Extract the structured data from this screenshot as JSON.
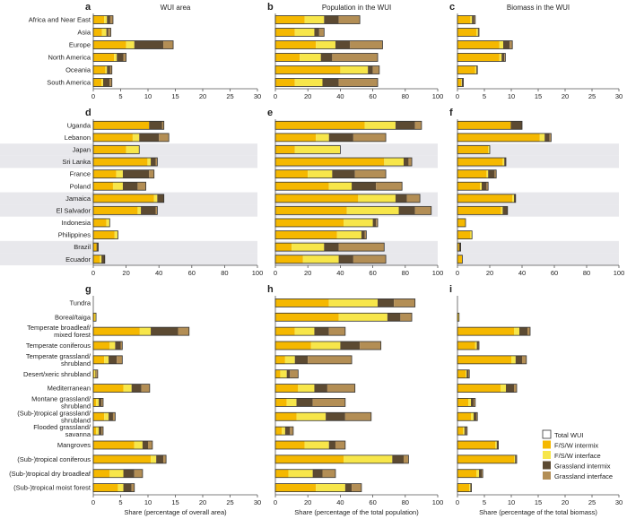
{
  "colors": {
    "fsw_intermix": "#F5B800",
    "fsw_interface": "#F7E64A",
    "grass_intermix": "#5C4A32",
    "grass_interface": "#B38E55",
    "outline": "#333333",
    "shade": "#E8E8EC"
  },
  "legend": [
    {
      "label": "Total WUI",
      "kind": "total"
    },
    {
      "label": "F/S/W intermix",
      "kind": "fsw_intermix"
    },
    {
      "label": "F/S/W interface",
      "kind": "fsw_interface"
    },
    {
      "label": "Grassland intermix",
      "kind": "grass_intermix"
    },
    {
      "label": "Grassland interface",
      "kind": "grass_interface"
    }
  ],
  "chart_data": [
    {
      "id": "a",
      "type": "bar",
      "orientation": "horizontal",
      "stacked": true,
      "title": "WUI area",
      "xlabel": "",
      "xlim": [
        0,
        30
      ],
      "xticks": [
        0,
        5,
        10,
        15,
        20,
        25,
        30
      ],
      "categories": [
        "Africa and Near East",
        "Asia",
        "Europe",
        "North America",
        "Oceania",
        "South America"
      ],
      "series": [
        {
          "name": "F/S/W intermix",
          "values": [
            2.0,
            1.6,
            6.0,
            3.8,
            2.2,
            1.5
          ]
        },
        {
          "name": "F/S/W interface",
          "values": [
            0.5,
            0.8,
            1.5,
            0.5,
            0.3,
            0.3
          ]
        },
        {
          "name": "Grassland intermix",
          "values": [
            0.6,
            0.3,
            5.3,
            1.2,
            0.6,
            1.2
          ]
        },
        {
          "name": "Grassland interface",
          "values": [
            0.5,
            0.5,
            1.8,
            0.5,
            0.3,
            0.4
          ]
        }
      ]
    },
    {
      "id": "b",
      "type": "bar",
      "orientation": "horizontal",
      "stacked": true,
      "title": "Population in the WUI",
      "xlabel": "",
      "xlim": [
        0,
        100
      ],
      "xticks": [
        0,
        20,
        40,
        60,
        80,
        100
      ],
      "categories": [
        "Africa and Near East",
        "Asia",
        "Europe",
        "North America",
        "Oceania",
        "South America"
      ],
      "series": [
        {
          "name": "F/S/W intermix",
          "values": [
            18,
            12,
            25,
            15,
            40,
            12
          ]
        },
        {
          "name": "F/S/W interface",
          "values": [
            12,
            12,
            12,
            13,
            17,
            17
          ]
        },
        {
          "name": "Grassland intermix",
          "values": [
            9,
            3,
            9,
            7,
            3,
            10
          ]
        },
        {
          "name": "Grassland interface",
          "values": [
            13,
            3,
            20,
            28,
            4,
            24
          ]
        }
      ]
    },
    {
      "id": "c",
      "type": "bar",
      "orientation": "horizontal",
      "stacked": true,
      "title": "Biomass in the WUI",
      "xlabel": "",
      "xlim": [
        0,
        30
      ],
      "xticks": [
        0,
        5,
        10,
        15,
        20,
        25,
        30
      ],
      "categories": [
        "Africa and Near East",
        "Asia",
        "Europe",
        "North America",
        "Oceania",
        "South America"
      ],
      "series": [
        {
          "name": "F/S/W intermix",
          "values": [
            2.4,
            3.5,
            7.8,
            7.8,
            3.3,
            0.7
          ]
        },
        {
          "name": "F/S/W interface",
          "values": [
            0.3,
            0.3,
            0.7,
            0.4,
            0.2,
            0.1
          ]
        },
        {
          "name": "Grassland intermix",
          "values": [
            0.4,
            0.1,
            1.2,
            0.5,
            0.1,
            0.2
          ]
        },
        {
          "name": "Grassland interface",
          "values": [
            0.2,
            0.1,
            0.5,
            0.2,
            0.1,
            0.1
          ]
        }
      ]
    },
    {
      "id": "d",
      "type": "bar",
      "orientation": "horizontal",
      "stacked": true,
      "title": "",
      "xlabel": "",
      "xlim": [
        0,
        100
      ],
      "xticks": [
        0,
        20,
        40,
        60,
        80,
        100
      ],
      "categories": [
        "Uganda",
        "Lebanon",
        "Japan",
        "Sri Lanka",
        "France",
        "Poland",
        "Jamaica",
        "El Salvador",
        "Indonesia",
        "Philippines",
        "Brazil",
        "Ecuador"
      ],
      "shaded_rows": [
        "Japan",
        "Sri Lanka",
        "Jamaica",
        "El Salvador",
        "Brazil",
        "Ecuador"
      ],
      "series": [
        {
          "name": "F/S/W intermix",
          "values": [
            34,
            24,
            20,
            33,
            14,
            12,
            37,
            27,
            8,
            13,
            2,
            4
          ]
        },
        {
          "name": "F/S/W interface",
          "values": [
            0,
            4,
            8,
            2,
            4,
            6,
            2,
            2,
            2,
            2,
            0,
            1
          ]
        },
        {
          "name": "Grassland intermix",
          "values": [
            8,
            12,
            0,
            3,
            16,
            9,
            4,
            9,
            0,
            0,
            1,
            2
          ]
        },
        {
          "name": "Grassland interface",
          "values": [
            1,
            6,
            0,
            1,
            3,
            5,
            0,
            1,
            0,
            0,
            0,
            0
          ]
        }
      ]
    },
    {
      "id": "e",
      "type": "bar",
      "orientation": "horizontal",
      "stacked": true,
      "title": "",
      "xlabel": "",
      "xlim": [
        0,
        100
      ],
      "xticks": [
        0,
        20,
        40,
        60,
        80,
        100
      ],
      "categories": [
        "Uganda",
        "Lebanon",
        "Japan",
        "Sri Lanka",
        "France",
        "Poland",
        "Jamaica",
        "El Salvador",
        "Indonesia",
        "Philippines",
        "Brazil",
        "Ecuador"
      ],
      "shaded_rows": [
        "Japan",
        "Sri Lanka",
        "Jamaica",
        "El Salvador",
        "Brazil",
        "Ecuador"
      ],
      "series": [
        {
          "name": "F/S/W intermix",
          "values": [
            55,
            25,
            12,
            67,
            20,
            33,
            51,
            44,
            42,
            38,
            10,
            17
          ]
        },
        {
          "name": "F/S/W interface",
          "values": [
            19,
            8,
            28,
            12,
            15,
            14,
            23,
            32,
            18,
            15,
            20,
            22
          ]
        },
        {
          "name": "Grassland intermix",
          "values": [
            12,
            15,
            0,
            3,
            14,
            15,
            7,
            10,
            2,
            2,
            9,
            9
          ]
        },
        {
          "name": "Grassland interface",
          "values": [
            4,
            20,
            0,
            2,
            19,
            16,
            8,
            10,
            1,
            1,
            28,
            20
          ]
        }
      ]
    },
    {
      "id": "f",
      "type": "bar",
      "orientation": "horizontal",
      "stacked": true,
      "title": "",
      "xlabel": "",
      "xlim": [
        0,
        100
      ],
      "xticks": [
        0,
        20,
        40,
        60,
        80,
        100
      ],
      "categories": [
        "Uganda",
        "Lebanon",
        "Japan",
        "Sri Lanka",
        "France",
        "Poland",
        "Jamaica",
        "El Salvador",
        "Indonesia",
        "Philippines",
        "Brazil",
        "Ecuador"
      ],
      "shaded_rows": [
        "Japan",
        "Sri Lanka",
        "Jamaica",
        "El Salvador",
        "Brazil",
        "Ecuador"
      ],
      "series": [
        {
          "name": "F/S/W intermix",
          "values": [
            33,
            51,
            19,
            28,
            18,
            14,
            34,
            27,
            5,
            8,
            1,
            3
          ]
        },
        {
          "name": "F/S/W interface",
          "values": [
            0,
            3,
            1,
            1,
            1,
            1,
            1,
            1,
            0,
            1,
            0,
            0
          ]
        },
        {
          "name": "Grassland intermix",
          "values": [
            7,
            3,
            0,
            1,
            4,
            3,
            1,
            3,
            0,
            0,
            1,
            0
          ]
        },
        {
          "name": "Grassland interface",
          "values": [
            0,
            1,
            0,
            0,
            1,
            1,
            0,
            0,
            0,
            0,
            0,
            0
          ]
        }
      ]
    },
    {
      "id": "g",
      "type": "bar",
      "orientation": "horizontal",
      "stacked": true,
      "title": "",
      "xlabel": "Share (percentage of overall area)",
      "xlim": [
        0,
        30
      ],
      "xticks": [
        0,
        5,
        10,
        15,
        20,
        25,
        30
      ],
      "categories": [
        "Tundra",
        "Boreal/taiga",
        "Temperate broadleaf/\nmixed forest",
        "Temperate coniferous",
        "Temperate grassland/\nshrubland",
        "Desert/xeric shrubland",
        "Mediterranean",
        "Montane grassland/\nshrubland",
        "(Sub-)tropical grassland/\nshrubland",
        "Flooded grassland/\nsavanna",
        "Mangroves",
        "(Sub-)tropical coniferous",
        "(Sub-)tropical dry broadleaf",
        "(Sub-)tropical moist forest"
      ],
      "series": [
        {
          "name": "F/S/W intermix",
          "values": [
            0.0,
            0.3,
            8.5,
            3.0,
            2.0,
            0.2,
            5.5,
            0.5,
            2.0,
            0.5,
            7.5,
            10.5,
            3.0,
            4.5
          ]
        },
        {
          "name": "F/S/W interface",
          "values": [
            0.0,
            0.2,
            2.0,
            1.0,
            0.8,
            0.2,
            1.5,
            0.5,
            0.8,
            0.5,
            1.5,
            1.0,
            2.5,
            1.0
          ]
        },
        {
          "name": "Grassland intermix",
          "values": [
            0.0,
            0.0,
            5.0,
            1.0,
            1.5,
            0.1,
            1.8,
            0.5,
            0.8,
            0.5,
            1.0,
            1.3,
            2.0,
            1.5
          ]
        },
        {
          "name": "Grassland interface",
          "values": [
            0.0,
            0.0,
            2.0,
            0.3,
            1.0,
            0.3,
            1.5,
            0.3,
            0.4,
            0.3,
            0.8,
            0.5,
            1.5,
            0.5
          ]
        }
      ]
    },
    {
      "id": "h",
      "type": "bar",
      "orientation": "horizontal",
      "stacked": true,
      "title": "",
      "xlabel": "Share (percentage of the total population)",
      "xlim": [
        0,
        100
      ],
      "xticks": [
        0,
        20,
        40,
        60,
        80,
        100
      ],
      "categories": [
        "Tundra",
        "Boreal/taiga",
        "Temperate broadleaf/\nmixed forest",
        "Temperate coniferous",
        "Temperate grassland/\nshrubland",
        "Desert/xeric shrubland",
        "Mediterranean",
        "Montane grassland/\nshrubland",
        "(Sub-)tropical grassland/\nshrubland",
        "Flooded grassland/\nsavanna",
        "Mangroves",
        "(Sub-)tropical coniferous",
        "(Sub-)tropical dry broadleaf",
        "(Sub-)tropical moist forest"
      ],
      "series": [
        {
          "name": "F/S/W intermix",
          "values": [
            33,
            39,
            12,
            22,
            6,
            3,
            14,
            7,
            13,
            4,
            18,
            42,
            8,
            25
          ]
        },
        {
          "name": "F/S/W interface",
          "values": [
            30,
            30,
            12,
            18,
            6,
            4,
            10,
            6,
            18,
            2,
            15,
            30,
            15,
            18
          ]
        },
        {
          "name": "Grassland intermix",
          "values": [
            10,
            8,
            9,
            12,
            8,
            2,
            8,
            10,
            12,
            3,
            4,
            7,
            6,
            4
          ]
        },
        {
          "name": "Grassland interface",
          "values": [
            13,
            7,
            10,
            13,
            27,
            5,
            17,
            20,
            16,
            2,
            6,
            3,
            8,
            6
          ]
        }
      ]
    },
    {
      "id": "i",
      "type": "bar",
      "orientation": "horizontal",
      "stacked": true,
      "title": "",
      "xlabel": "Share (percentage of the total biomass)",
      "xlim": [
        0,
        30
      ],
      "xticks": [
        0,
        5,
        10,
        15,
        20,
        25,
        30
      ],
      "categories": [
        "Tundra",
        "Boreal/taiga",
        "Temperate broadleaf/\nmixed forest",
        "Temperate coniferous",
        "Temperate grassland/\nshrubland",
        "Desert/xeric shrubland",
        "Mediterranean",
        "Montane grassland/\nshrubland",
        "(Sub-)tropical grassland/\nshrubland",
        "Flooded grassland/\nsavanna",
        "Mangroves",
        "(Sub-)tropical coniferous",
        "(Sub-)tropical dry broadleaf",
        "(Sub-)tropical moist forest"
      ],
      "series": [
        {
          "name": "F/S/W intermix",
          "values": [
            0.0,
            0.2,
            10.5,
            3.3,
            10.0,
            1.5,
            8.0,
            2.0,
            2.5,
            1.0,
            7.0,
            10.5,
            3.5,
            2.2
          ]
        },
        {
          "name": "F/S/W interface",
          "values": [
            0.0,
            0.1,
            1.0,
            0.3,
            0.8,
            0.2,
            1.0,
            0.5,
            0.5,
            0.3,
            0.3,
            0.2,
            0.5,
            0.2
          ]
        },
        {
          "name": "Grassland intermix",
          "values": [
            0.0,
            0.0,
            1.5,
            0.3,
            1.2,
            0.3,
            1.5,
            0.5,
            0.5,
            0.3,
            0.2,
            0.2,
            0.5,
            0.1
          ]
        },
        {
          "name": "Grassland interface",
          "values": [
            0.0,
            0.0,
            0.5,
            0.1,
            0.8,
            0.2,
            0.5,
            0.3,
            0.2,
            0.2,
            0.1,
            0.1,
            0.2,
            0.1
          ]
        }
      ]
    }
  ]
}
